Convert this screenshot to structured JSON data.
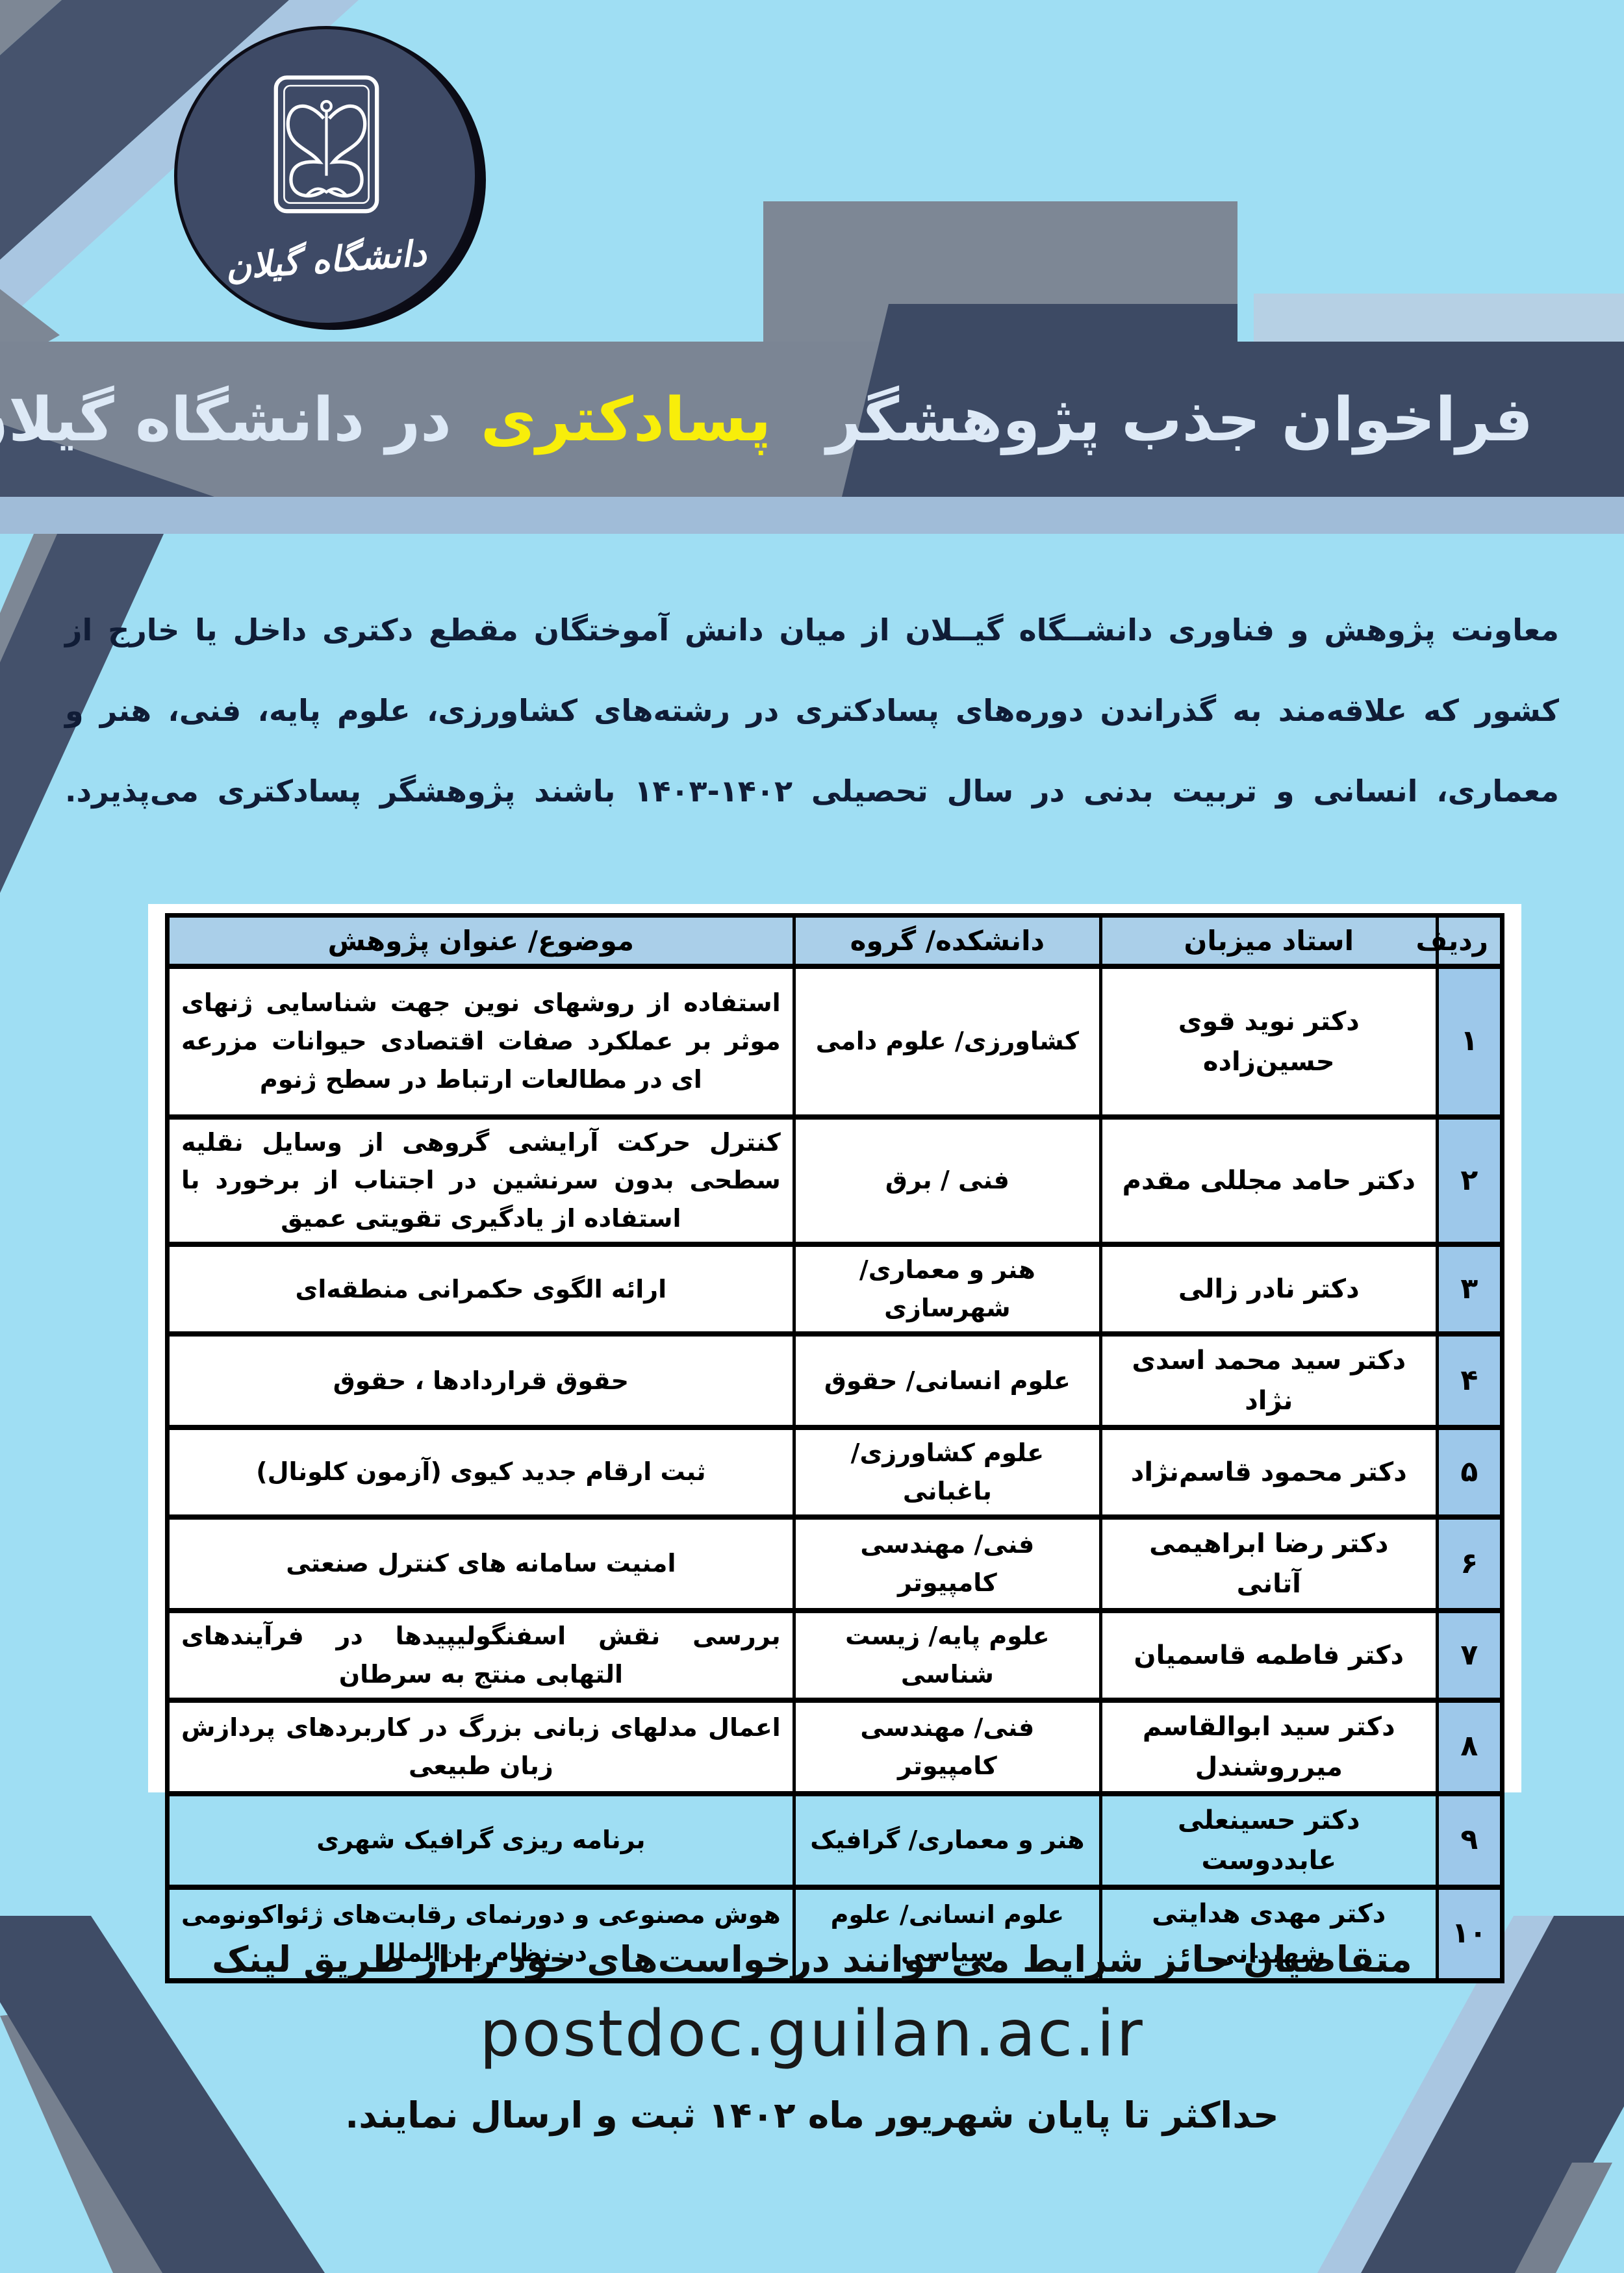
{
  "colors": {
    "background": "#9fdef3",
    "band_navy": "#3d4a64",
    "band_gray": "#7b8594",
    "highlight_yellow": "#f8ee0a",
    "title_text": "#dde9f6",
    "steel_strip": "#a0bcd8",
    "ribbon_navy": "#46536d",
    "ribbon_periwinkle": "#a9c6e1",
    "table_header_blue": "#aacfe9",
    "row_number_blue": "#9dc8ea",
    "intro_text": "#101c36"
  },
  "logo": {
    "university_name": "دانشگاه گیلان"
  },
  "title": {
    "part1": "فراخوان جذب پژوهشگر",
    "highlight": "پسادکتری",
    "part2": "در دانشگاه گیلان"
  },
  "intro": {
    "text": "معاونت پژوهش و فناوری دانشــگاه گیــلان از میان دانش آموختگان مقطع دکتری داخل یا خارج از کشور که علاقه‌مند به گذراندن دوره‌های پسادکتری در رشته‌های کشاورزی، علوم پایه، فنی، هنر و معماری، انسانی و تربیت بدنی در سال تحصیلی ۱۴۰۲-۱۴۰۳ باشند پژوهشگر پسادکتری می‌پذیرد."
  },
  "table": {
    "headers": {
      "num": "ردیف",
      "professor": "استاد میزبان",
      "faculty": "دانشکده/ گروه",
      "topic": "موضوع/ عنوان پژوهش"
    },
    "rows": [
      {
        "num": "۱",
        "professor": "دکتر نوید قوی حسین‌زاده",
        "faculty": "کشاورزی/ علوم دامی",
        "topic": "استفاده از روشهای نوین جهت شناسایی ژنهای موثر بر عملکرد صفات اقتصادی حیوانات مزرعه ای در مطالعات ارتباط در سطح ژنوم"
      },
      {
        "num": "۲",
        "professor": "دکتر حامد مجللی مقدم",
        "faculty": "فنی / برق",
        "topic": "کنترل حرکت آرایشی گروهی از وسایل نقلیه سطحی بدون سرنشین در اجتناب از برخورد با استفاده از یادگیری تقویتی عمیق"
      },
      {
        "num": "۳",
        "professor": "دکتر نادر زالی",
        "faculty": "هنر و معماری/ شهرسازی",
        "topic": "ارائه الگوی حکمرانی منطقه‌ای"
      },
      {
        "num": "۴",
        "professor": "دکتر سید محمد اسدی نژاد",
        "faculty": "علوم انسانی/ حقوق",
        "topic": "حقوق قراردادها ، حقوق"
      },
      {
        "num": "۵",
        "professor": "دکتر محمود قاسم‌نژاد",
        "faculty": "علوم کشاورزی/ باغبانی",
        "topic": "ثبت ارقام جدید کیوی (آزمون کلونال)"
      },
      {
        "num": "۶",
        "professor": "دکتر رضا ابراهیمی آتانی",
        "faculty": "فنی/ مهندسی کامپیوتر",
        "topic": "امنیت سامانه های کنترل صنعتی"
      },
      {
        "num": "۷",
        "professor": "دکتر فاطمه قاسمیان",
        "faculty": "علوم پایه/ زیست شناسی",
        "topic": "بررسی نقش اسفنگولیپیدها در فرآیندهای التهابی منتج به سرطان"
      },
      {
        "num": "۸",
        "professor": "دکتر سید ابوالقاسم میرروشندل",
        "faculty": "فنی/ مهندسی کامپیوتر",
        "topic": "اعمال مدلهای زبانی بزرگ در کاربردهای پردازش زبان طبیعی"
      },
      {
        "num": "۹",
        "professor": "دکتر حسینعلی عابددوست",
        "faculty": "هنر و معماری/ گرافیک",
        "topic": "برنامه ریزی گرافیک شهری"
      },
      {
        "num": "۱۰",
        "professor": "دکتر مهدی هدایتی شهیدانی",
        "faculty": "علوم انسانی/ علوم سیاسی",
        "topic": "هوش مصنوعی و دورنمای رقابت‌های ژئواکونومی در نظام بین‌الملل"
      }
    ]
  },
  "footer": {
    "line1": "متقاضیان حائز شرایط می توانند درخواست‌های خود را از طریق لینک",
    "link": "postdoc.guilan.ac.ir",
    "line2": "حداکثر تا پایان شهریور ماه ۱۴۰۲ ثبت و ارسال نمایند."
  }
}
